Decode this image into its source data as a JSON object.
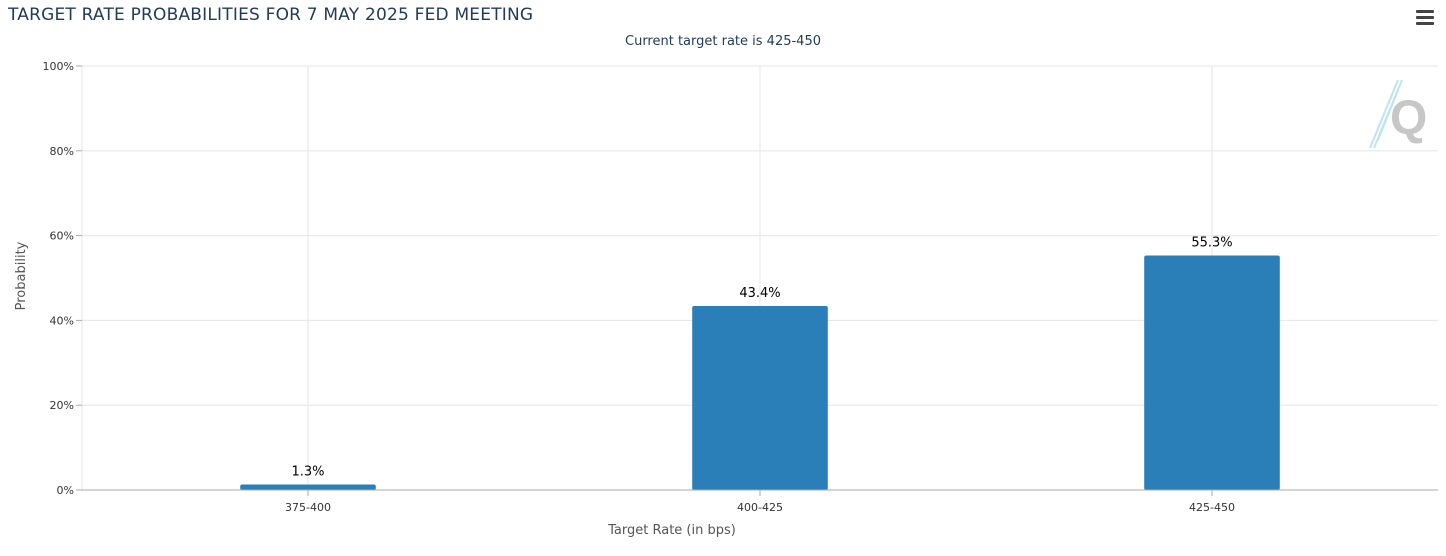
{
  "header": {
    "title": "TARGET RATE PROBABILITIES FOR 7 MAY 2025 FED MEETING",
    "subtitle": "Current target rate is 425-450"
  },
  "toolbar": {
    "menu_icon": "hamburger-menu-icon"
  },
  "watermark": {
    "icon": "q-logo-icon",
    "letter": "Q"
  },
  "colors": {
    "bar": "#2a7fb8",
    "grid": "#e6e6e6",
    "axis": "#aaaaaa",
    "title": "#1f3a5c"
  },
  "chart_data": {
    "type": "bar",
    "title": "TARGET RATE PROBABILITIES FOR 7 MAY 2025 FED MEETING",
    "subtitle": "Current target rate is 425-450",
    "categories": [
      "375-400",
      "400-425",
      "425-450"
    ],
    "values": [
      1.3,
      43.4,
      55.3
    ],
    "data_labels": [
      "1.3%",
      "43.4%",
      "55.3%"
    ],
    "xlabel": "Target Rate (in bps)",
    "ylabel": "Probability",
    "ylim": [
      0,
      100
    ],
    "yticks": [
      0,
      20,
      40,
      60,
      80,
      100
    ],
    "ytick_labels": [
      "0%",
      "20%",
      "40%",
      "60%",
      "80%",
      "100%"
    ],
    "grid": true,
    "legend": "none"
  }
}
